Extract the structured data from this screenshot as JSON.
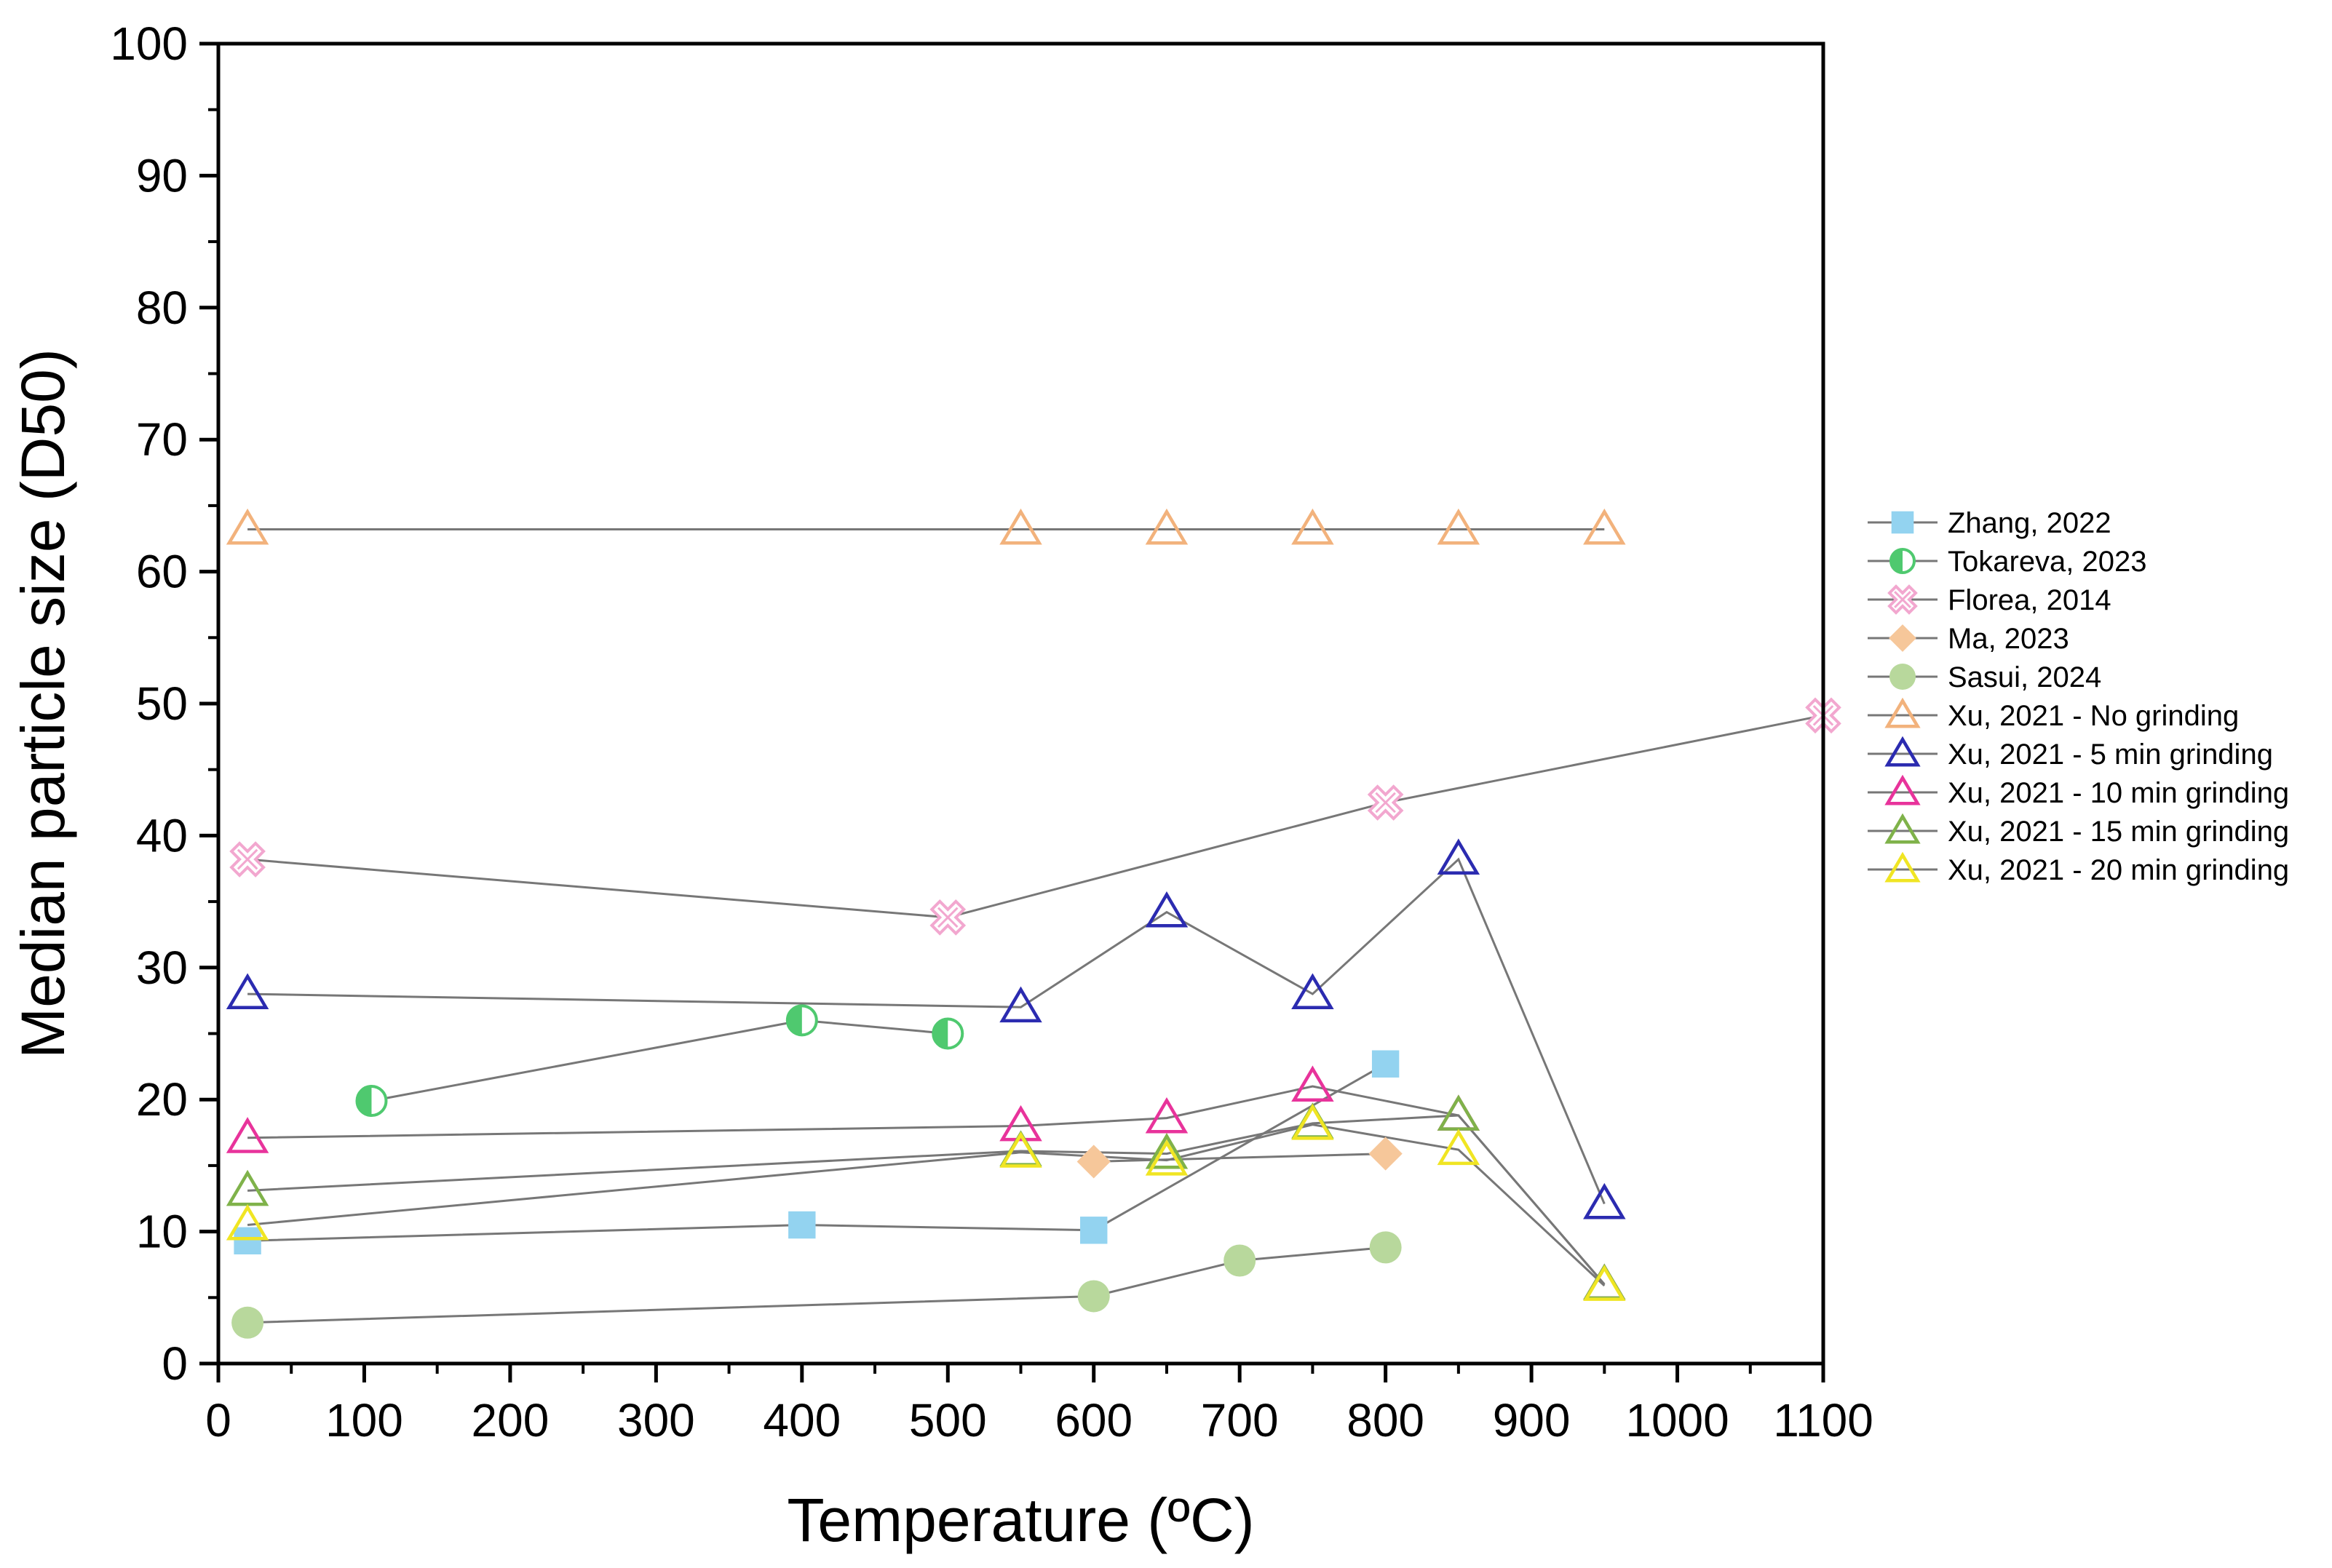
{
  "chart_data": {
    "type": "scatter",
    "title": "",
    "xlabel": "Temperature (ºC)",
    "ylabel": "Median particle size (D50)",
    "xlim": [
      0,
      1100
    ],
    "ylim": [
      0,
      100
    ],
    "xticks": [
      "0",
      "100",
      "200",
      "300",
      "400",
      "500",
      "600",
      "700",
      "800",
      "900",
      "1000",
      "1100"
    ],
    "yticks": [
      "0",
      "10",
      "20",
      "30",
      "40",
      "50",
      "60",
      "70",
      "80",
      "90",
      "100"
    ],
    "legend_position": "right",
    "series": [
      {
        "name": "Zhang, 2022",
        "marker": "square",
        "color": "#93d3f0",
        "points": [
          [
            20,
            9.3
          ],
          [
            400,
            10.5
          ],
          [
            600,
            10.1
          ],
          [
            800,
            22.7
          ]
        ]
      },
      {
        "name": "Tokareva, 2023",
        "marker": "half-circle",
        "color": "#4fc96f",
        "points": [
          [
            105,
            19.9
          ],
          [
            400,
            26.0
          ],
          [
            500,
            25.0
          ]
        ]
      },
      {
        "name": "Florea, 2014",
        "marker": "cross-x",
        "color": "#f2a7cf",
        "points": [
          [
            20,
            38.2
          ],
          [
            500,
            33.8
          ],
          [
            800,
            42.5
          ],
          [
            1100,
            49.1
          ]
        ]
      },
      {
        "name": "Ma, 2023",
        "marker": "diamond",
        "color": "#f6c79a",
        "points": [
          [
            600,
            15.3
          ],
          [
            800,
            15.9
          ]
        ]
      },
      {
        "name": "Sasui, 2024",
        "marker": "circle",
        "color": "#b8d89c",
        "points": [
          [
            20,
            3.1
          ],
          [
            600,
            5.1
          ],
          [
            700,
            7.8
          ],
          [
            800,
            8.8
          ]
        ]
      },
      {
        "name": "Xu, 2021 - No grinding",
        "marker": "triangle",
        "color": "#f2b27c",
        "points": [
          [
            20,
            63.2
          ],
          [
            550,
            63.2
          ],
          [
            650,
            63.2
          ],
          [
            750,
            63.2
          ],
          [
            850,
            63.2
          ],
          [
            950,
            63.2
          ]
        ]
      },
      {
        "name": "Xu, 2021 - 5 min grinding",
        "marker": "triangle",
        "color": "#2b2bb0",
        "points": [
          [
            20,
            28.0
          ],
          [
            550,
            27.0
          ],
          [
            650,
            34.2
          ],
          [
            750,
            28.0
          ],
          [
            850,
            38.2
          ],
          [
            950,
            12.1
          ]
        ]
      },
      {
        "name": "Xu, 2021 - 10 min grinding",
        "marker": "triangle",
        "color": "#e8339b",
        "points": [
          [
            20,
            17.1
          ],
          [
            550,
            18.0
          ],
          [
            650,
            18.6
          ],
          [
            750,
            21.0
          ],
          [
            850,
            18.8
          ],
          [
            950,
            6.0
          ]
        ]
      },
      {
        "name": "Xu, 2021 - 15 min grinding",
        "marker": "triangle",
        "color": "#7fb24a",
        "points": [
          [
            20,
            13.1
          ],
          [
            550,
            16.1
          ],
          [
            650,
            15.9
          ],
          [
            750,
            18.2
          ],
          [
            850,
            18.8
          ],
          [
            950,
            6.0
          ]
        ]
      },
      {
        "name": "Xu, 2021 - 20 min grinding",
        "marker": "triangle",
        "color": "#f0e523",
        "points": [
          [
            20,
            10.5
          ],
          [
            550,
            16.0
          ],
          [
            650,
            15.4
          ],
          [
            750,
            18.1
          ],
          [
            850,
            16.2
          ],
          [
            950,
            5.9
          ]
        ]
      }
    ]
  }
}
